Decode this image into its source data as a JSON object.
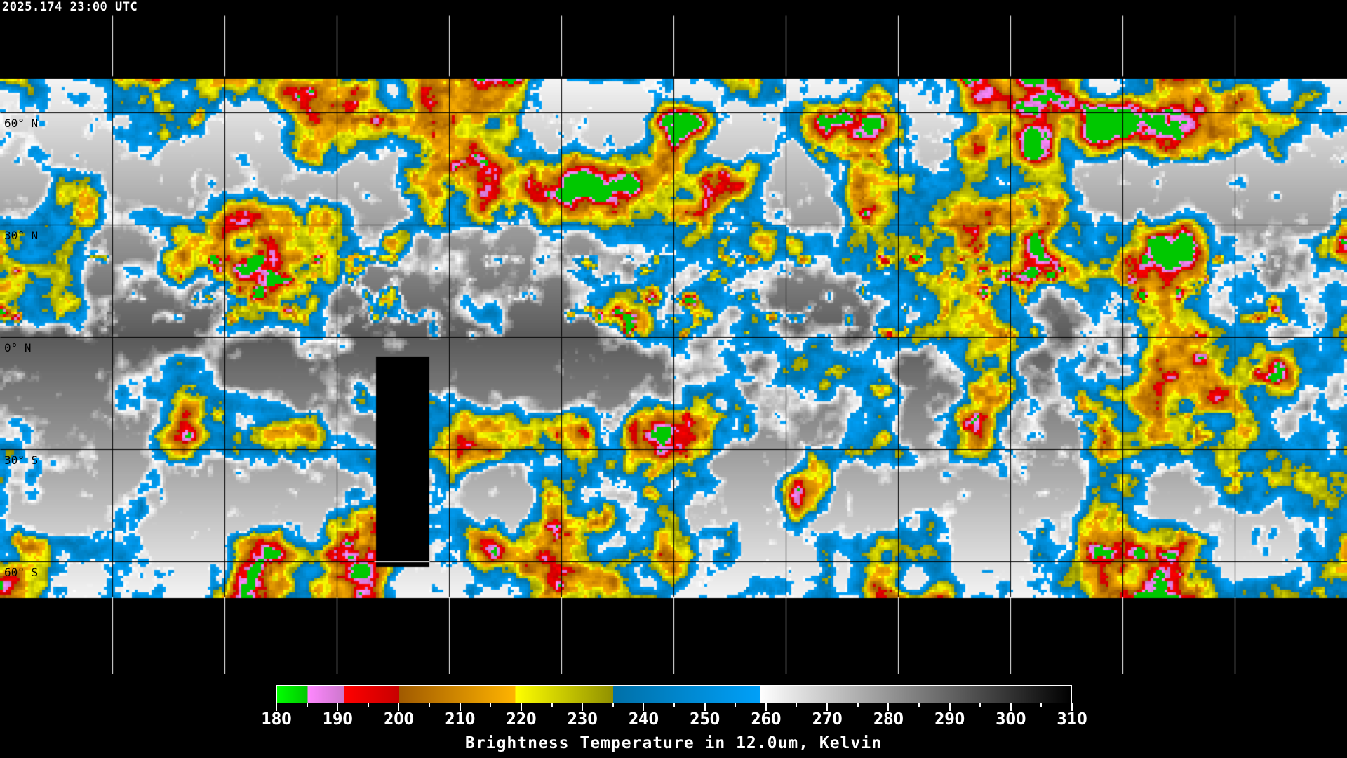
{
  "header": {
    "timestamp": "2025.174 23:00 UTC"
  },
  "map": {
    "projection": "equirectangular",
    "grid_longitude_step_deg": 30,
    "grid_latitude_step_deg": 30,
    "lat_labels": [
      "60° N",
      "30° N",
      "0° N",
      "30° S",
      "60° S"
    ]
  },
  "colorbar": {
    "min": 180,
    "max": 310,
    "tick_labels": [
      "180",
      "190",
      "200",
      "210",
      "220",
      "230",
      "240",
      "250",
      "260",
      "270",
      "280",
      "290",
      "300",
      "310"
    ],
    "segments": [
      {
        "from": 180,
        "to": 185,
        "start": "#00ff00",
        "end": "#00c800"
      },
      {
        "from": 185,
        "to": 191,
        "start": "#ff88ff",
        "end": "#cc77cc"
      },
      {
        "from": 191,
        "to": 200,
        "start": "#ff0000",
        "end": "#c80000"
      },
      {
        "from": 200,
        "to": 219,
        "start": "#a05a00",
        "end": "#ffb400"
      },
      {
        "from": 219,
        "to": 235,
        "start": "#ffff00",
        "end": "#909000"
      },
      {
        "from": 235,
        "to": 259,
        "start": "#0070a8",
        "end": "#00a0f8"
      },
      {
        "from": 259,
        "to": 310,
        "start": "#ffffff",
        "end": "#000000"
      }
    ],
    "title": "Brightness Temperature in 12.0um, Kelvin"
  }
}
